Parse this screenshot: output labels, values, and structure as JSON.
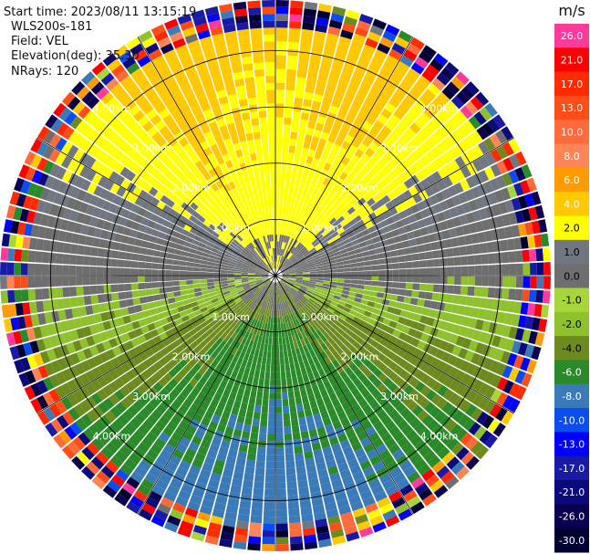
{
  "info": {
    "start_time": "Start time: 2023/08/11 13:15:19",
    "instrument": "WLS200s-181",
    "field": "Field: VEL",
    "elevation": "Elevation(deg): 35.30",
    "nrays": "NRays: 120"
  },
  "colorbar": {
    "unit": "m/s",
    "levels": [
      {
        "label": "26.0",
        "color": "#ff3a9c"
      },
      {
        "label": "21.0",
        "color": "#ff0000"
      },
      {
        "label": "17.0",
        "color": "#ff2a00"
      },
      {
        "label": "13.0",
        "color": "#ff4d1a"
      },
      {
        "label": "10.0",
        "color": "#ff6a3a"
      },
      {
        "label": "8.0",
        "color": "#ff8456"
      },
      {
        "label": "6.0",
        "color": "#ff9a00"
      },
      {
        "label": "4.0",
        "color": "#ffc800"
      },
      {
        "label": "2.0",
        "color": "#ffff00"
      },
      {
        "label": "1.0",
        "color": "#717780"
      },
      {
        "label": "0.0",
        "color": "#6e6e6e"
      },
      {
        "label": "-1.0",
        "color": "#a6d63a"
      },
      {
        "label": "-2.0",
        "color": "#8fc02e"
      },
      {
        "label": "-4.0",
        "color": "#6c8a1e"
      },
      {
        "label": "-6.0",
        "color": "#2a8a2a"
      },
      {
        "label": "-8.0",
        "color": "#3a7ab8"
      },
      {
        "label": "-10.0",
        "color": "#0a4cf0"
      },
      {
        "label": "-13.0",
        "color": "#0000ff"
      },
      {
        "label": "-17.0",
        "color": "#1a1aa8"
      },
      {
        "label": "-21.0",
        "color": "#0a0a7a"
      },
      {
        "label": "-26.0",
        "color": "#0a0050"
      },
      {
        "label": "-30.0",
        "color": "#000033"
      }
    ]
  },
  "chart_data": {
    "type": "heatmap",
    "projection": "polar (PPI scan)",
    "field": "VEL",
    "unit": "m/s",
    "nrays": 120,
    "elevation_deg": 35.3,
    "range_rings_km": [
      1.0,
      2.0,
      3.0,
      4.0
    ],
    "range_ring_labels": [
      "1.00km",
      "2.00km",
      "3.00km",
      "4.00km"
    ],
    "max_range_km": 4.9,
    "azimuth_spokes_deg": [
      0,
      30,
      60,
      90,
      120,
      150,
      180,
      210,
      240,
      270,
      300,
      330
    ],
    "noise_beyond_km": 4.3,
    "velocity_pattern": [
      {
        "azimuth_deg": 0,
        "velocity_ms": 4.0
      },
      {
        "azimuth_deg": 30,
        "velocity_ms": 5.0
      },
      {
        "azimuth_deg": 60,
        "velocity_ms": 2.0
      },
      {
        "azimuth_deg": 90,
        "velocity_ms": -0.5
      },
      {
        "azimuth_deg": 120,
        "velocity_ms": -3.0
      },
      {
        "azimuth_deg": 150,
        "velocity_ms": -6.0
      },
      {
        "azimuth_deg": 180,
        "velocity_ms": -7.0
      },
      {
        "azimuth_deg": 210,
        "velocity_ms": -6.0
      },
      {
        "azimuth_deg": 240,
        "velocity_ms": -3.0
      },
      {
        "azimuth_deg": 270,
        "velocity_ms": -0.5
      },
      {
        "azimuth_deg": 300,
        "velocity_ms": 2.0
      },
      {
        "azimuth_deg": 330,
        "velocity_ms": 5.0
      }
    ]
  }
}
